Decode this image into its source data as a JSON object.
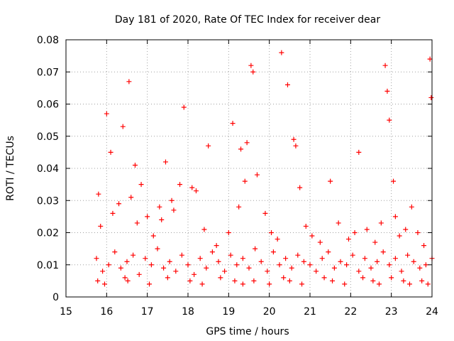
{
  "chart_data": {
    "type": "scatter",
    "title": "Day 181 of 2020, Rate Of TEC Index for receiver dear",
    "xlabel": "GPS time / hours",
    "ylabel": "ROTI / TECUs",
    "xlim": [
      15,
      24
    ],
    "ylim": [
      0,
      0.08
    ],
    "xticks": [
      15,
      16,
      17,
      18,
      19,
      20,
      21,
      22,
      23,
      24
    ],
    "yticks": [
      0,
      0.01,
      0.02,
      0.03,
      0.04,
      0.05,
      0.06,
      0.07,
      0.08
    ],
    "xtick_labels": [
      "15",
      "16",
      "17",
      "18",
      "19",
      "20",
      "21",
      "22",
      "23",
      "24"
    ],
    "ytick_labels": [
      "0",
      "0.01",
      "0.02",
      "0.03",
      "0.04",
      "0.05",
      "0.06",
      "0.07",
      "0.08"
    ],
    "grid": true,
    "marker": "+",
    "color": "#ff0000",
    "series": [
      {
        "name": "ROTI",
        "x": [
          15.75,
          15.9,
          16.05,
          16.2,
          16.35,
          16.5,
          16.65,
          16.8,
          16.95,
          17.1,
          17.25,
          17.4,
          17.55,
          17.7,
          17.85,
          18.0,
          18.15,
          18.3,
          18.45,
          18.6,
          18.75,
          18.9,
          19.05,
          19.2,
          19.35,
          19.5,
          19.65,
          19.8,
          19.95,
          20.1,
          20.25,
          20.4,
          20.55,
          20.7,
          20.85,
          21.0,
          21.15,
          21.3,
          21.45,
          21.6,
          21.75,
          21.9,
          22.05,
          22.2,
          22.35,
          22.5,
          22.65,
          22.8,
          22.95,
          23.1,
          23.25,
          23.4,
          23.55,
          23.7,
          23.85,
          24.0,
          15.8,
          16.0,
          16.1,
          16.4,
          16.55,
          16.7,
          16.85,
          17.3,
          17.45,
          17.6,
          17.8,
          17.9,
          18.1,
          18.5,
          19.1,
          19.3,
          19.45,
          19.55,
          19.6,
          19.7,
          20.3,
          20.45,
          20.6,
          20.65,
          20.75,
          21.5,
          22.2,
          22.85,
          22.9,
          22.95,
          23.05,
          23.1,
          23.5,
          23.95,
          23.98,
          15.85,
          16.15,
          16.3,
          16.6,
          16.75,
          17.0,
          17.15,
          17.35,
          17.65,
          18.2,
          18.4,
          18.7,
          19.0,
          19.25,
          19.4,
          19.9,
          20.05,
          20.2,
          20.9,
          21.05,
          21.25,
          21.7,
          21.95,
          22.1,
          22.4,
          22.6,
          22.75,
          23.2,
          23.35,
          23.65,
          23.8,
          15.78,
          15.95,
          16.45,
          16.52,
          17.05,
          17.5,
          18.05,
          18.35,
          18.8,
          19.15,
          19.35,
          19.62,
          20.0,
          20.35,
          20.5,
          20.8,
          21.35,
          21.55,
          21.85,
          22.3,
          22.55,
          22.7,
          23.0,
          23.3,
          23.45,
          23.75,
          23.9
        ],
        "y": [
          0.012,
          0.008,
          0.01,
          0.014,
          0.009,
          0.011,
          0.013,
          0.007,
          0.012,
          0.01,
          0.015,
          0.009,
          0.011,
          0.008,
          0.013,
          0.01,
          0.007,
          0.012,
          0.009,
          0.014,
          0.011,
          0.008,
          0.013,
          0.01,
          0.012,
          0.009,
          0.015,
          0.011,
          0.008,
          0.014,
          0.01,
          0.012,
          0.009,
          0.013,
          0.011,
          0.01,
          0.008,
          0.012,
          0.014,
          0.009,
          0.011,
          0.01,
          0.013,
          0.008,
          0.012,
          0.009,
          0.011,
          0.014,
          0.01,
          0.012,
          0.008,
          0.013,
          0.011,
          0.009,
          0.01,
          0.012,
          0.032,
          0.057,
          0.045,
          0.053,
          0.067,
          0.041,
          0.035,
          0.028,
          0.042,
          0.03,
          0.035,
          0.059,
          0.034,
          0.047,
          0.054,
          0.046,
          0.048,
          0.072,
          0.07,
          0.038,
          0.076,
          0.066,
          0.049,
          0.047,
          0.034,
          0.036,
          0.045,
          0.072,
          0.064,
          0.055,
          0.036,
          0.025,
          0.028,
          0.074,
          0.062,
          0.022,
          0.026,
          0.029,
          0.031,
          0.023,
          0.025,
          0.019,
          0.024,
          0.027,
          0.033,
          0.021,
          0.016,
          0.02,
          0.028,
          0.036,
          0.026,
          0.02,
          0.018,
          0.022,
          0.019,
          0.017,
          0.023,
          0.018,
          0.02,
          0.021,
          0.017,
          0.023,
          0.019,
          0.021,
          0.02,
          0.016,
          0.005,
          0.004,
          0.006,
          0.005,
          0.004,
          0.006,
          0.005,
          0.004,
          0.006,
          0.005,
          0.004,
          0.005,
          0.004,
          0.006,
          0.005,
          0.004,
          0.006,
          0.005,
          0.004,
          0.006,
          0.005,
          0.004,
          0.006,
          0.005,
          0.004,
          0.005,
          0.004
        ]
      }
    ]
  }
}
